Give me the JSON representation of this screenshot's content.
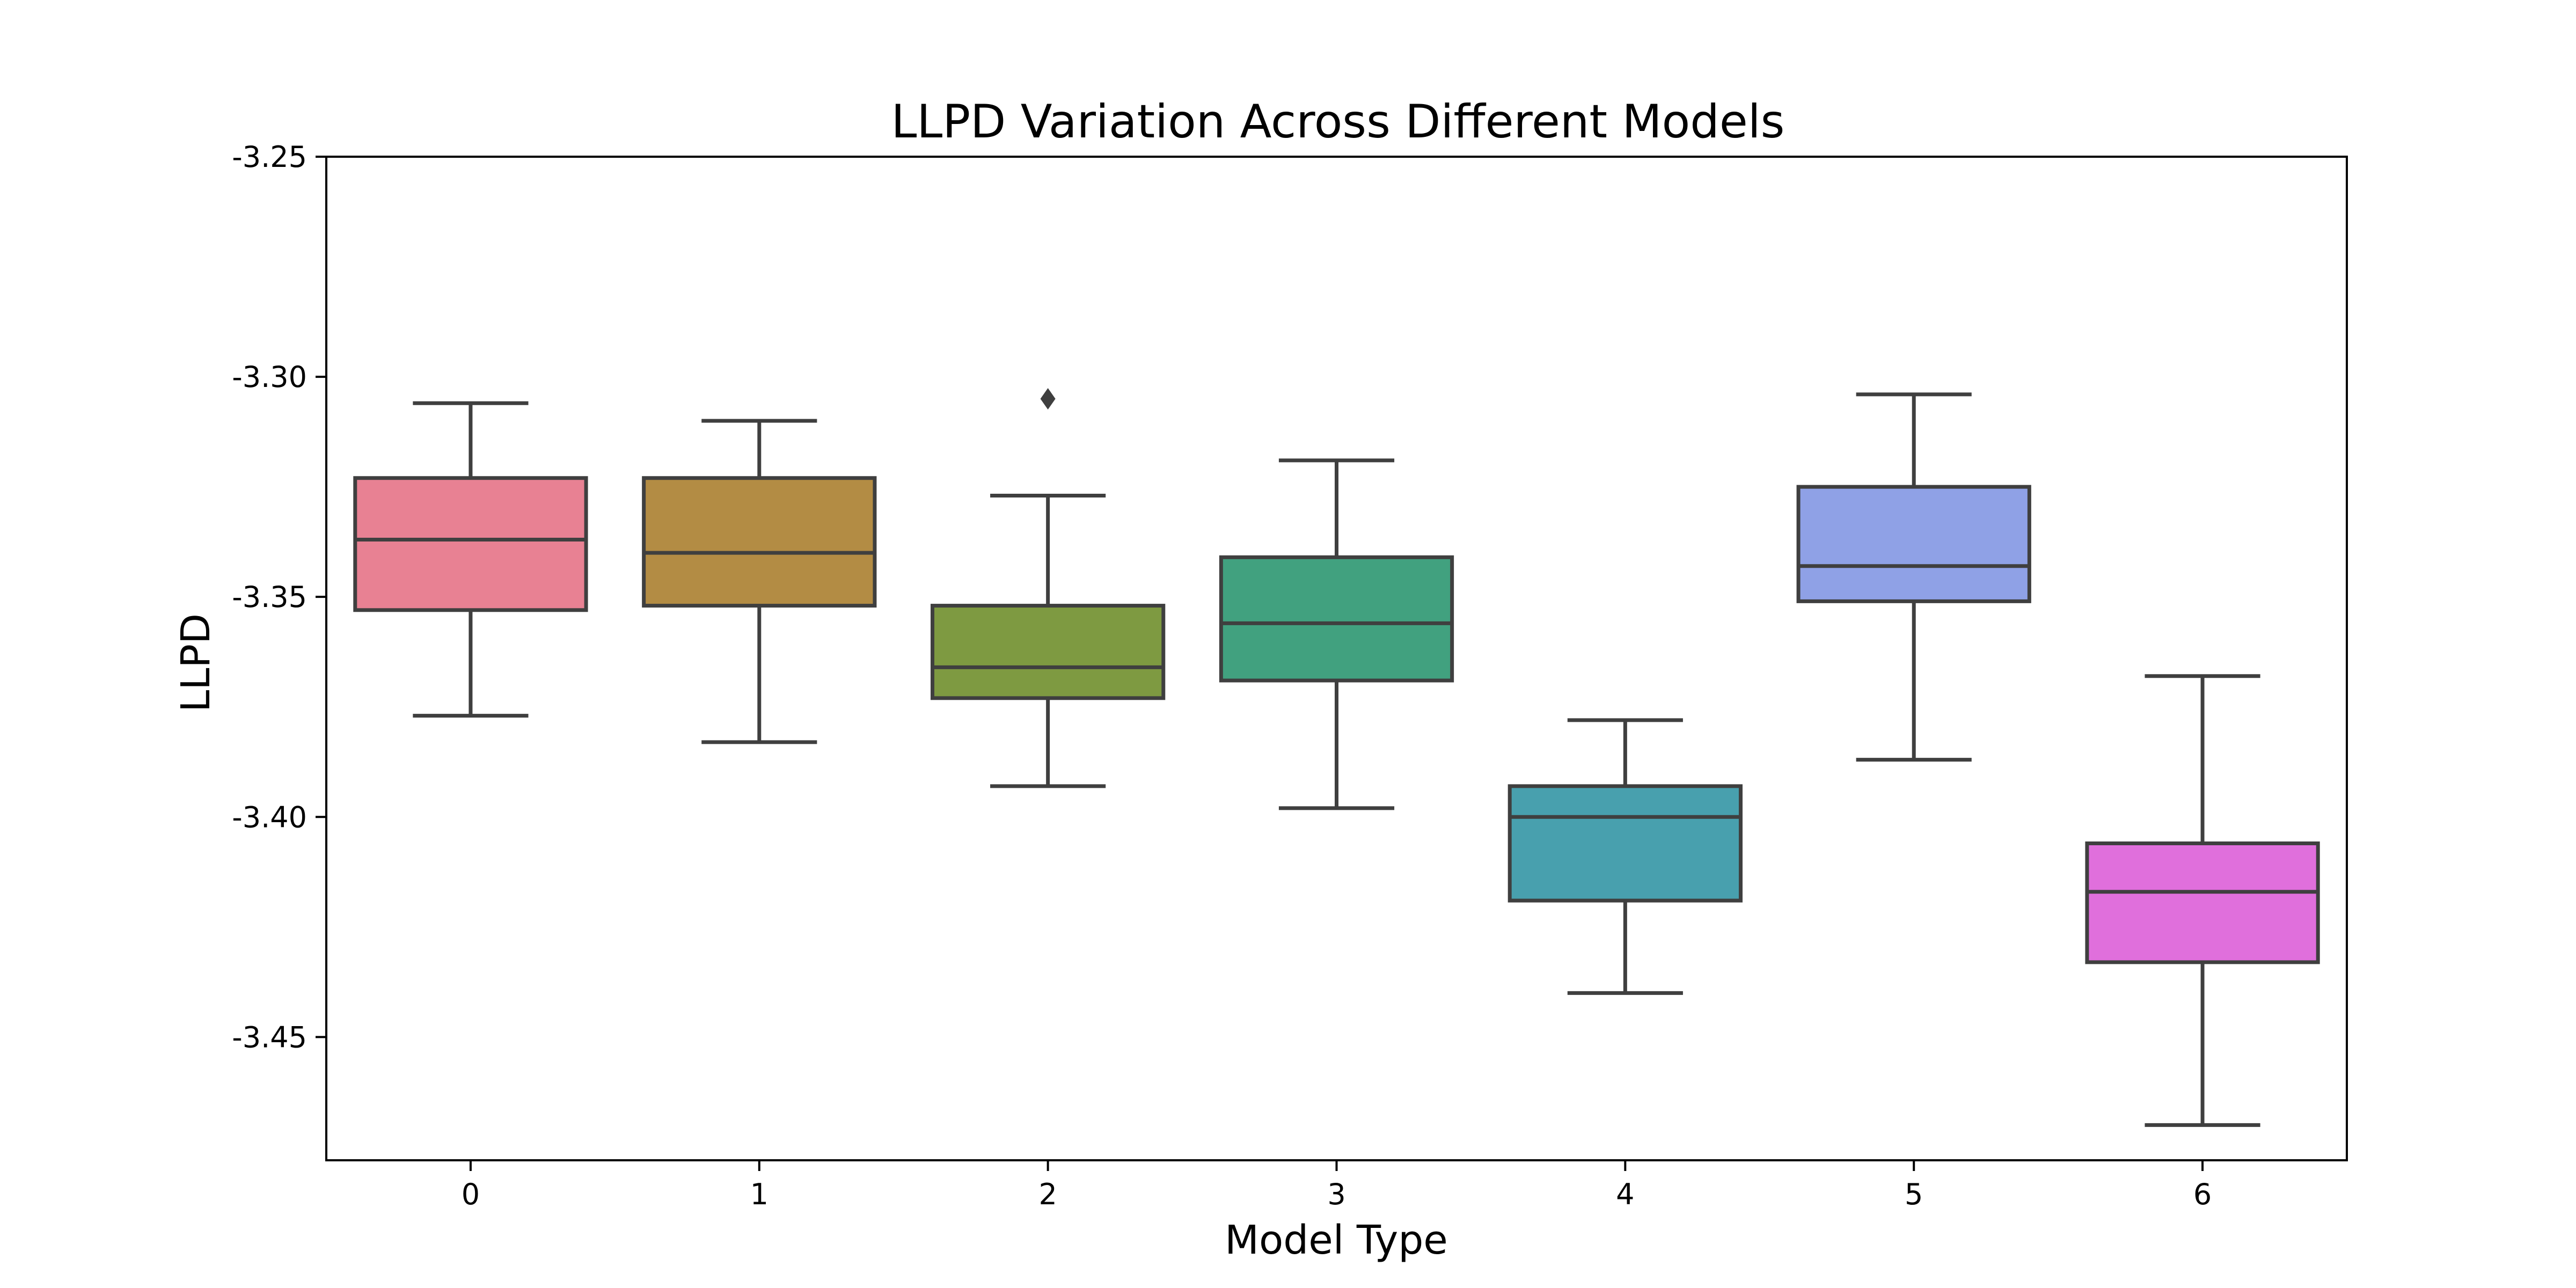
{
  "chart_data": {
    "type": "box",
    "title": "LLPD Variation Across Different Models",
    "xlabel": "Model Type",
    "ylabel": "LLPD",
    "ylim": [
      -3.478,
      -3.25
    ],
    "yticks": [
      "-3.25",
      "-3.30",
      "-3.35",
      "-3.40",
      "-3.45"
    ],
    "ytick_values": [
      -3.25,
      -3.3,
      -3.35,
      -3.4,
      -3.45
    ],
    "categories": [
      "0",
      "1",
      "2",
      "3",
      "4",
      "5",
      "6"
    ],
    "grid": false,
    "legend": "none",
    "box_edge_color": "#3f3f3f",
    "series": [
      {
        "category": "0",
        "whisker_low": -3.377,
        "q1": -3.353,
        "median": -3.337,
        "q3": -3.323,
        "whisker_high": -3.306,
        "outliers": [],
        "color": "#e88193"
      },
      {
        "category": "1",
        "whisker_low": -3.383,
        "q1": -3.352,
        "median": -3.34,
        "q3": -3.323,
        "whisker_high": -3.31,
        "outliers": [],
        "color": "#b38c44"
      },
      {
        "category": "2",
        "whisker_low": -3.393,
        "q1": -3.373,
        "median": -3.366,
        "q3": -3.352,
        "whisker_high": -3.327,
        "outliers": [
          -3.305
        ],
        "color": "#7e9a41"
      },
      {
        "category": "3",
        "whisker_low": -3.398,
        "q1": -3.369,
        "median": -3.356,
        "q3": -3.341,
        "whisker_high": -3.319,
        "outliers": [],
        "color": "#41a17f"
      },
      {
        "category": "4",
        "whisker_low": -3.44,
        "q1": -3.419,
        "median": -3.4,
        "q3": -3.393,
        "whisker_high": -3.378,
        "outliers": [],
        "color": "#48a0ae"
      },
      {
        "category": "5",
        "whisker_low": -3.387,
        "q1": -3.351,
        "median": -3.343,
        "q3": -3.325,
        "whisker_high": -3.304,
        "outliers": [],
        "color": "#8fa1e6"
      },
      {
        "category": "6",
        "whisker_low": -3.47,
        "q1": -3.433,
        "median": -3.417,
        "q3": -3.406,
        "whisker_high": -3.368,
        "outliers": [],
        "color": "#e06fdc"
      }
    ]
  }
}
